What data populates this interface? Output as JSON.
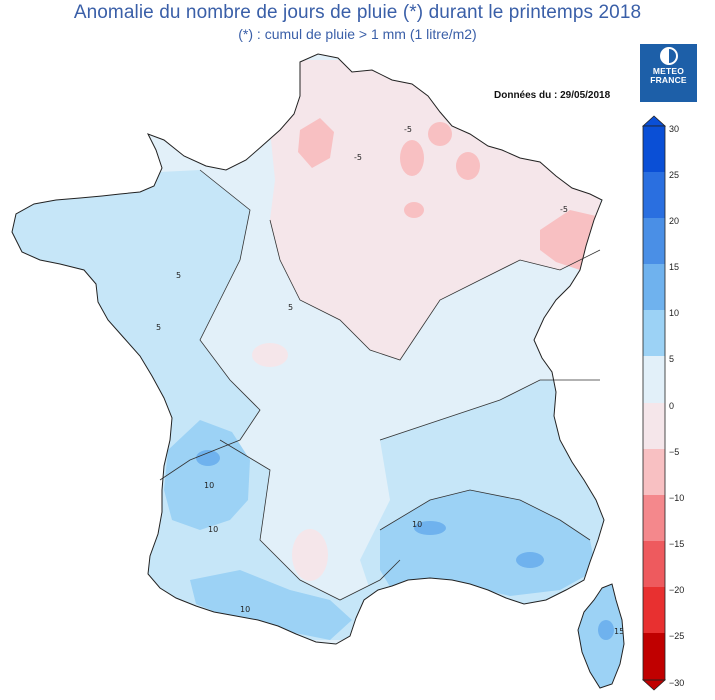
{
  "title": "Anomalie du nombre de jours de pluie (*) durant le printemps 2018",
  "subtitle": "(*) : cumul de pluie > 1 mm (1 litre/m2)",
  "source_date": "Données du : 29/05/2018",
  "logo": {
    "line1": "METEO",
    "line2": "FRANCE"
  },
  "colors": {
    "pos30": "#0a4fd6",
    "pos25": "#2a6fe0",
    "pos20": "#4a8fe6",
    "pos15": "#6fb2ee",
    "pos10": "#9cd2f5",
    "pos5": "#c6e6f8",
    "pos0": "#e2f0f9",
    "neg0": "#f5e6ea",
    "neg5": "#f8c0c2",
    "neg10": "#f4888c",
    "neg15": "#ee5a5e",
    "neg20": "#e83030",
    "neg25": "#d81010",
    "neg30": "#c00000"
  },
  "legend": {
    "ticks": [
      "30",
      "25",
      "20",
      "15",
      "10",
      "5",
      "0",
      "−5",
      "−10",
      "−15",
      "−20",
      "−25",
      "−30"
    ]
  },
  "map_labels": {
    "lille_minus5": "-5",
    "nord_minus5": "-5",
    "bretagne_5": "5",
    "centre_5": "5",
    "ouest_5": "5",
    "aquitaine_10": "10",
    "sw_10": "10",
    "pyrenees_10": "10",
    "rhone_10": "10",
    "corse_15": "15",
    "est_minus5": "-5"
  }
}
